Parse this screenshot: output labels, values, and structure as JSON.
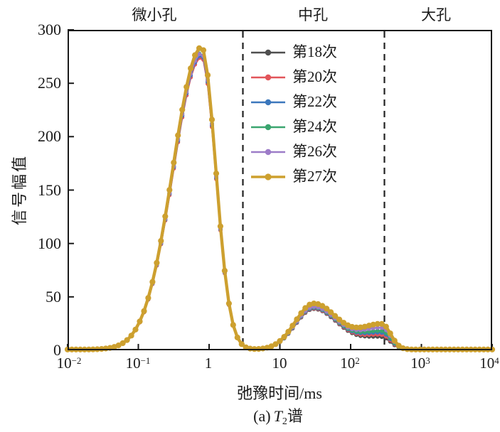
{
  "figure": {
    "region_labels": [
      "微小孔",
      "中孔",
      "大孔"
    ],
    "y_axis": {
      "label": "信号幅值",
      "ticks": [
        "0",
        "50",
        "100",
        "150",
        "200",
        "250",
        "300"
      ]
    },
    "x_axis": {
      "label": "弛豫时间/ms",
      "ticks": [
        {
          "base": "10",
          "exp": "−2"
        },
        {
          "base": "10",
          "exp": "−1"
        },
        {
          "base": "1",
          "exp": ""
        },
        {
          "base": "10",
          "exp": ""
        },
        {
          "base": "10",
          "exp": "2"
        },
        {
          "base": "10",
          "exp": "3"
        },
        {
          "base": "10",
          "exp": "4"
        }
      ]
    },
    "caption": {
      "prefix": "(a)",
      "var": "T",
      "sub": "2",
      "suffix": "谱"
    }
  },
  "chart_data": {
    "type": "line",
    "x_scale": "log",
    "x_range_ms": [
      0.01,
      10000
    ],
    "x_tick_values_log10": [
      -2,
      -1,
      0,
      1,
      2,
      3,
      4
    ],
    "y_range": [
      0,
      300
    ],
    "y_tick_values": [
      0,
      50,
      100,
      150,
      200,
      250,
      300
    ],
    "xlabel": "弛豫时间/ms",
    "ylabel": "信号幅值",
    "caption": "(a) T2谱",
    "legend_position": "upper-middle",
    "axis_color": "#1a1a1a",
    "divider_lines_ms": [
      3,
      300
    ],
    "pore_regions": [
      {
        "label": "微小孔",
        "from_ms": 0.01,
        "to_ms": 3
      },
      {
        "label": "中孔",
        "from_ms": 3,
        "to_ms": 300
      },
      {
        "label": "大孔",
        "from_ms": 300,
        "to_ms": 10000
      }
    ],
    "baseline": 0.7,
    "sample_step_log10": 0.06,
    "series": [
      {
        "name": "第18次",
        "color": "#4f4f4f",
        "line_width": 2.6,
        "marker_radius": 3,
        "peaks": [
          {
            "center_ms": 0.78,
            "amp": 276,
            "sigma_left": 0.4,
            "sigma_right": 0.2
          },
          {
            "center_ms": 30,
            "amp": 38,
            "sigma_left": 0.26,
            "sigma_right": 0.35
          },
          {
            "center_ms": 280,
            "amp": 11,
            "sigma_left": 0.3,
            "sigma_right": 0.12
          }
        ]
      },
      {
        "name": "第20次",
        "color": "#e2555a",
        "line_width": 2.6,
        "marker_radius": 3,
        "peaks": [
          {
            "center_ms": 0.78,
            "amp": 274,
            "sigma_left": 0.4,
            "sigma_right": 0.2
          },
          {
            "center_ms": 30,
            "amp": 38.5,
            "sigma_left": 0.26,
            "sigma_right": 0.35
          },
          {
            "center_ms": 280,
            "amp": 13,
            "sigma_left": 0.3,
            "sigma_right": 0.12
          }
        ]
      },
      {
        "name": "第22次",
        "color": "#3b77bc",
        "line_width": 2.6,
        "marker_radius": 3,
        "peaks": [
          {
            "center_ms": 0.78,
            "amp": 276,
            "sigma_left": 0.4,
            "sigma_right": 0.2
          },
          {
            "center_ms": 30,
            "amp": 39,
            "sigma_left": 0.26,
            "sigma_right": 0.35
          },
          {
            "center_ms": 280,
            "amp": 15,
            "sigma_left": 0.3,
            "sigma_right": 0.12
          }
        ]
      },
      {
        "name": "第24次",
        "color": "#3aa56f",
        "line_width": 2.6,
        "marker_radius": 3,
        "peaks": [
          {
            "center_ms": 0.78,
            "amp": 278,
            "sigma_left": 0.4,
            "sigma_right": 0.2
          },
          {
            "center_ms": 30,
            "amp": 39.5,
            "sigma_left": 0.26,
            "sigma_right": 0.35
          },
          {
            "center_ms": 280,
            "amp": 16.5,
            "sigma_left": 0.3,
            "sigma_right": 0.12
          }
        ]
      },
      {
        "name": "第26次",
        "color": "#9d7cc8",
        "line_width": 2.6,
        "marker_radius": 3,
        "peaks": [
          {
            "center_ms": 0.78,
            "amp": 277.5,
            "sigma_left": 0.4,
            "sigma_right": 0.2
          },
          {
            "center_ms": 30,
            "amp": 40,
            "sigma_left": 0.26,
            "sigma_right": 0.35
          },
          {
            "center_ms": 280,
            "amp": 19.5,
            "sigma_left": 0.3,
            "sigma_right": 0.12
          }
        ]
      },
      {
        "name": "第27次",
        "color": "#cda02f",
        "line_width": 4.4,
        "marker_radius": 4.1,
        "peaks": [
          {
            "center_ms": 0.78,
            "amp": 283,
            "sigma_left": 0.4,
            "sigma_right": 0.2
          },
          {
            "center_ms": 30,
            "amp": 43,
            "sigma_left": 0.26,
            "sigma_right": 0.35
          },
          {
            "center_ms": 280,
            "amp": 23,
            "sigma_left": 0.3,
            "sigma_right": 0.12
          }
        ]
      }
    ]
  }
}
